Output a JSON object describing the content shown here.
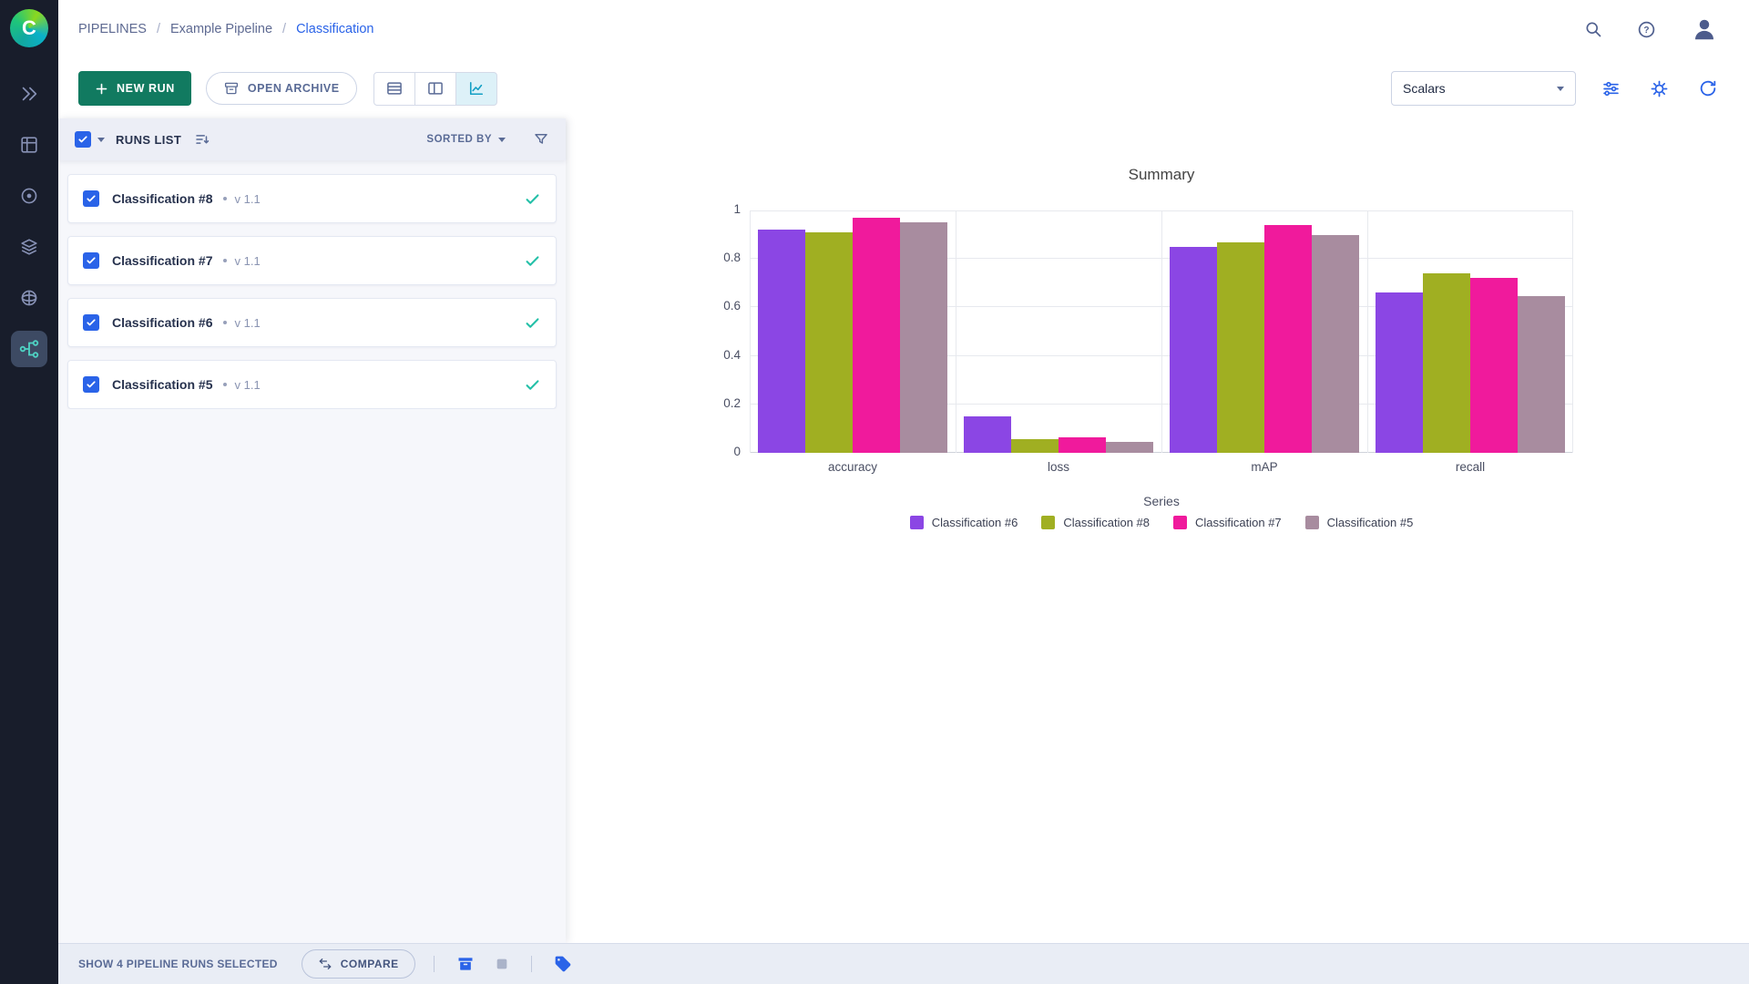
{
  "app": {
    "logo_letter": "C"
  },
  "breadcrumb": {
    "separator": "/",
    "items": [
      {
        "label": "PIPELINES"
      },
      {
        "label": "Example Pipeline"
      },
      {
        "label": "Classification",
        "active": true
      }
    ]
  },
  "header": {
    "icons": [
      "search-icon",
      "help-icon",
      "user-avatar"
    ]
  },
  "toolbar": {
    "new_run_label": "NEW RUN",
    "open_archive_label": "OPEN ARCHIVE",
    "view_modes": [
      "table-view",
      "split-view",
      "chart-view"
    ],
    "active_view": "chart-view",
    "metric_dropdown_value": "Scalars"
  },
  "runs_panel": {
    "title": "RUNS LIST",
    "sorted_by_label": "SORTED BY",
    "runs": [
      {
        "name": "Classification #8",
        "version": "v 1.1",
        "selected": true,
        "status": "completed"
      },
      {
        "name": "Classification #7",
        "version": "v 1.1",
        "selected": true,
        "status": "completed"
      },
      {
        "name": "Classification #6",
        "version": "v 1.1",
        "selected": true,
        "status": "completed"
      },
      {
        "name": "Classification #5",
        "version": "v 1.1",
        "selected": true,
        "status": "completed"
      }
    ]
  },
  "footer": {
    "selection_summary": "SHOW 4 PIPELINE RUNS SELECTED",
    "compare_label": "COMPARE",
    "icons": [
      "archive-icon",
      "abort-icon",
      "tag-icon"
    ]
  },
  "colors": {
    "accent_blue": "#2a63e8",
    "button_green": "#117a60",
    "status_teal": "#24c0a8",
    "active_view_teal": "#129fc4"
  },
  "chart_data": {
    "type": "bar",
    "title": "Summary",
    "categories": [
      "accuracy",
      "loss",
      "mAP",
      "recall"
    ],
    "series": [
      {
        "name": "Classification #6",
        "color": "#8b46e4",
        "values": [
          0.92,
          0.15,
          0.85,
          0.66
        ]
      },
      {
        "name": "Classification #8",
        "color": "#a0af22",
        "values": [
          0.91,
          0.055,
          0.87,
          0.74
        ]
      },
      {
        "name": "Classification #7",
        "color": "#f01a9c",
        "values": [
          0.97,
          0.065,
          0.94,
          0.72
        ]
      },
      {
        "name": "Classification #5",
        "color": "#a88c9f",
        "values": [
          0.95,
          0.046,
          0.9,
          0.645
        ]
      }
    ],
    "legend_title": "Series",
    "legend_position": "bottom",
    "xlabel": "",
    "ylabel": "",
    "ylim": [
      0,
      1
    ],
    "yticks": [
      0,
      0.2,
      0.4,
      0.6,
      0.8,
      1
    ],
    "grid": true
  }
}
